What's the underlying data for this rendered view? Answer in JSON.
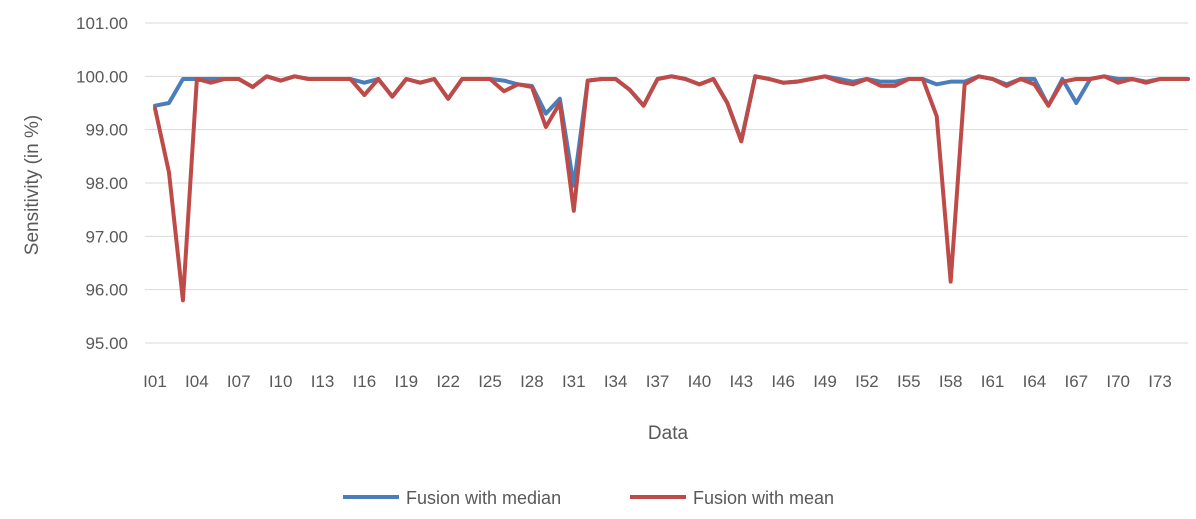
{
  "chart_data": {
    "type": "line",
    "xlabel": "Data",
    "ylabel": "Sensitivity (in %)",
    "ylim": [
      95.0,
      101.0
    ],
    "y_ticks": [
      "95.00",
      "96.00",
      "97.00",
      "98.00",
      "99.00",
      "100.00",
      "101.00"
    ],
    "x_tick_labels": [
      "I01",
      "I04",
      "I07",
      "I10",
      "I13",
      "I16",
      "I19",
      "I22",
      "I25",
      "I28",
      "I31",
      "I34",
      "I37",
      "I40",
      "I43",
      "I46",
      "I49",
      "I52",
      "I55",
      "I58",
      "I61",
      "I64",
      "I67",
      "I70",
      "I73"
    ],
    "grid": true,
    "legend_position": "bottom",
    "categories": [
      "I01",
      "I02",
      "I03",
      "I04",
      "I05",
      "I06",
      "I07",
      "I08",
      "I09",
      "I10",
      "I11",
      "I12",
      "I13",
      "I14",
      "I15",
      "I16",
      "I17",
      "I18",
      "I19",
      "I20",
      "I21",
      "I22",
      "I23",
      "I24",
      "I25",
      "I26",
      "I27",
      "I28",
      "I29",
      "I30",
      "I31",
      "I32",
      "I33",
      "I34",
      "I35",
      "I36",
      "I37",
      "I38",
      "I39",
      "I40",
      "I41",
      "I42",
      "I43",
      "I44",
      "I45",
      "I46",
      "I47",
      "I48",
      "I49",
      "I50",
      "I51",
      "I52",
      "I53",
      "I54",
      "I55",
      "I56",
      "I57",
      "I58",
      "I59",
      "I60",
      "I61",
      "I62",
      "I63",
      "I64",
      "I65",
      "I66",
      "I67",
      "I68",
      "I69",
      "I70",
      "I71",
      "I72",
      "I73",
      "I74",
      "I75"
    ],
    "series": [
      {
        "name": "Fusion with median",
        "color": "#4a7ebb",
        "values": [
          99.45,
          99.5,
          99.95,
          99.95,
          99.95,
          99.95,
          99.95,
          99.8,
          100.0,
          99.92,
          100.0,
          99.95,
          99.95,
          99.95,
          99.95,
          99.88,
          99.95,
          99.62,
          99.95,
          99.88,
          99.95,
          99.58,
          99.95,
          99.95,
          99.95,
          99.92,
          99.85,
          99.82,
          99.3,
          99.58,
          97.95,
          99.92,
          99.95,
          99.95,
          99.75,
          99.45,
          99.95,
          100.0,
          99.95,
          99.85,
          99.95,
          99.5,
          98.8,
          100.0,
          99.95,
          99.88,
          99.9,
          99.95,
          100.0,
          99.95,
          99.9,
          99.95,
          99.9,
          99.9,
          99.95,
          99.95,
          99.85,
          99.9,
          99.9,
          100.0,
          99.95,
          99.85,
          99.95,
          99.95,
          99.45,
          99.95,
          99.5,
          99.95,
          100.0,
          99.95,
          99.95,
          99.9,
          99.95,
          99.95,
          99.95
        ]
      },
      {
        "name": "Fusion with mean",
        "color": "#be4b48",
        "values": [
          99.4,
          98.2,
          95.8,
          99.95,
          99.88,
          99.95,
          99.95,
          99.8,
          100.0,
          99.92,
          100.0,
          99.95,
          99.95,
          99.95,
          99.95,
          99.65,
          99.95,
          99.62,
          99.95,
          99.88,
          99.95,
          99.58,
          99.95,
          99.95,
          99.95,
          99.72,
          99.85,
          99.8,
          99.05,
          99.5,
          97.48,
          99.92,
          99.95,
          99.95,
          99.75,
          99.45,
          99.95,
          100.0,
          99.95,
          99.85,
          99.95,
          99.5,
          98.78,
          100.0,
          99.95,
          99.88,
          99.9,
          99.95,
          100.0,
          99.9,
          99.85,
          99.95,
          99.82,
          99.82,
          99.95,
          99.95,
          99.25,
          96.15,
          99.85,
          100.0,
          99.95,
          99.82,
          99.95,
          99.85,
          99.45,
          99.9,
          99.95,
          99.95,
          100.0,
          99.88,
          99.95,
          99.88,
          99.95,
          99.95,
          99.95
        ]
      }
    ]
  }
}
